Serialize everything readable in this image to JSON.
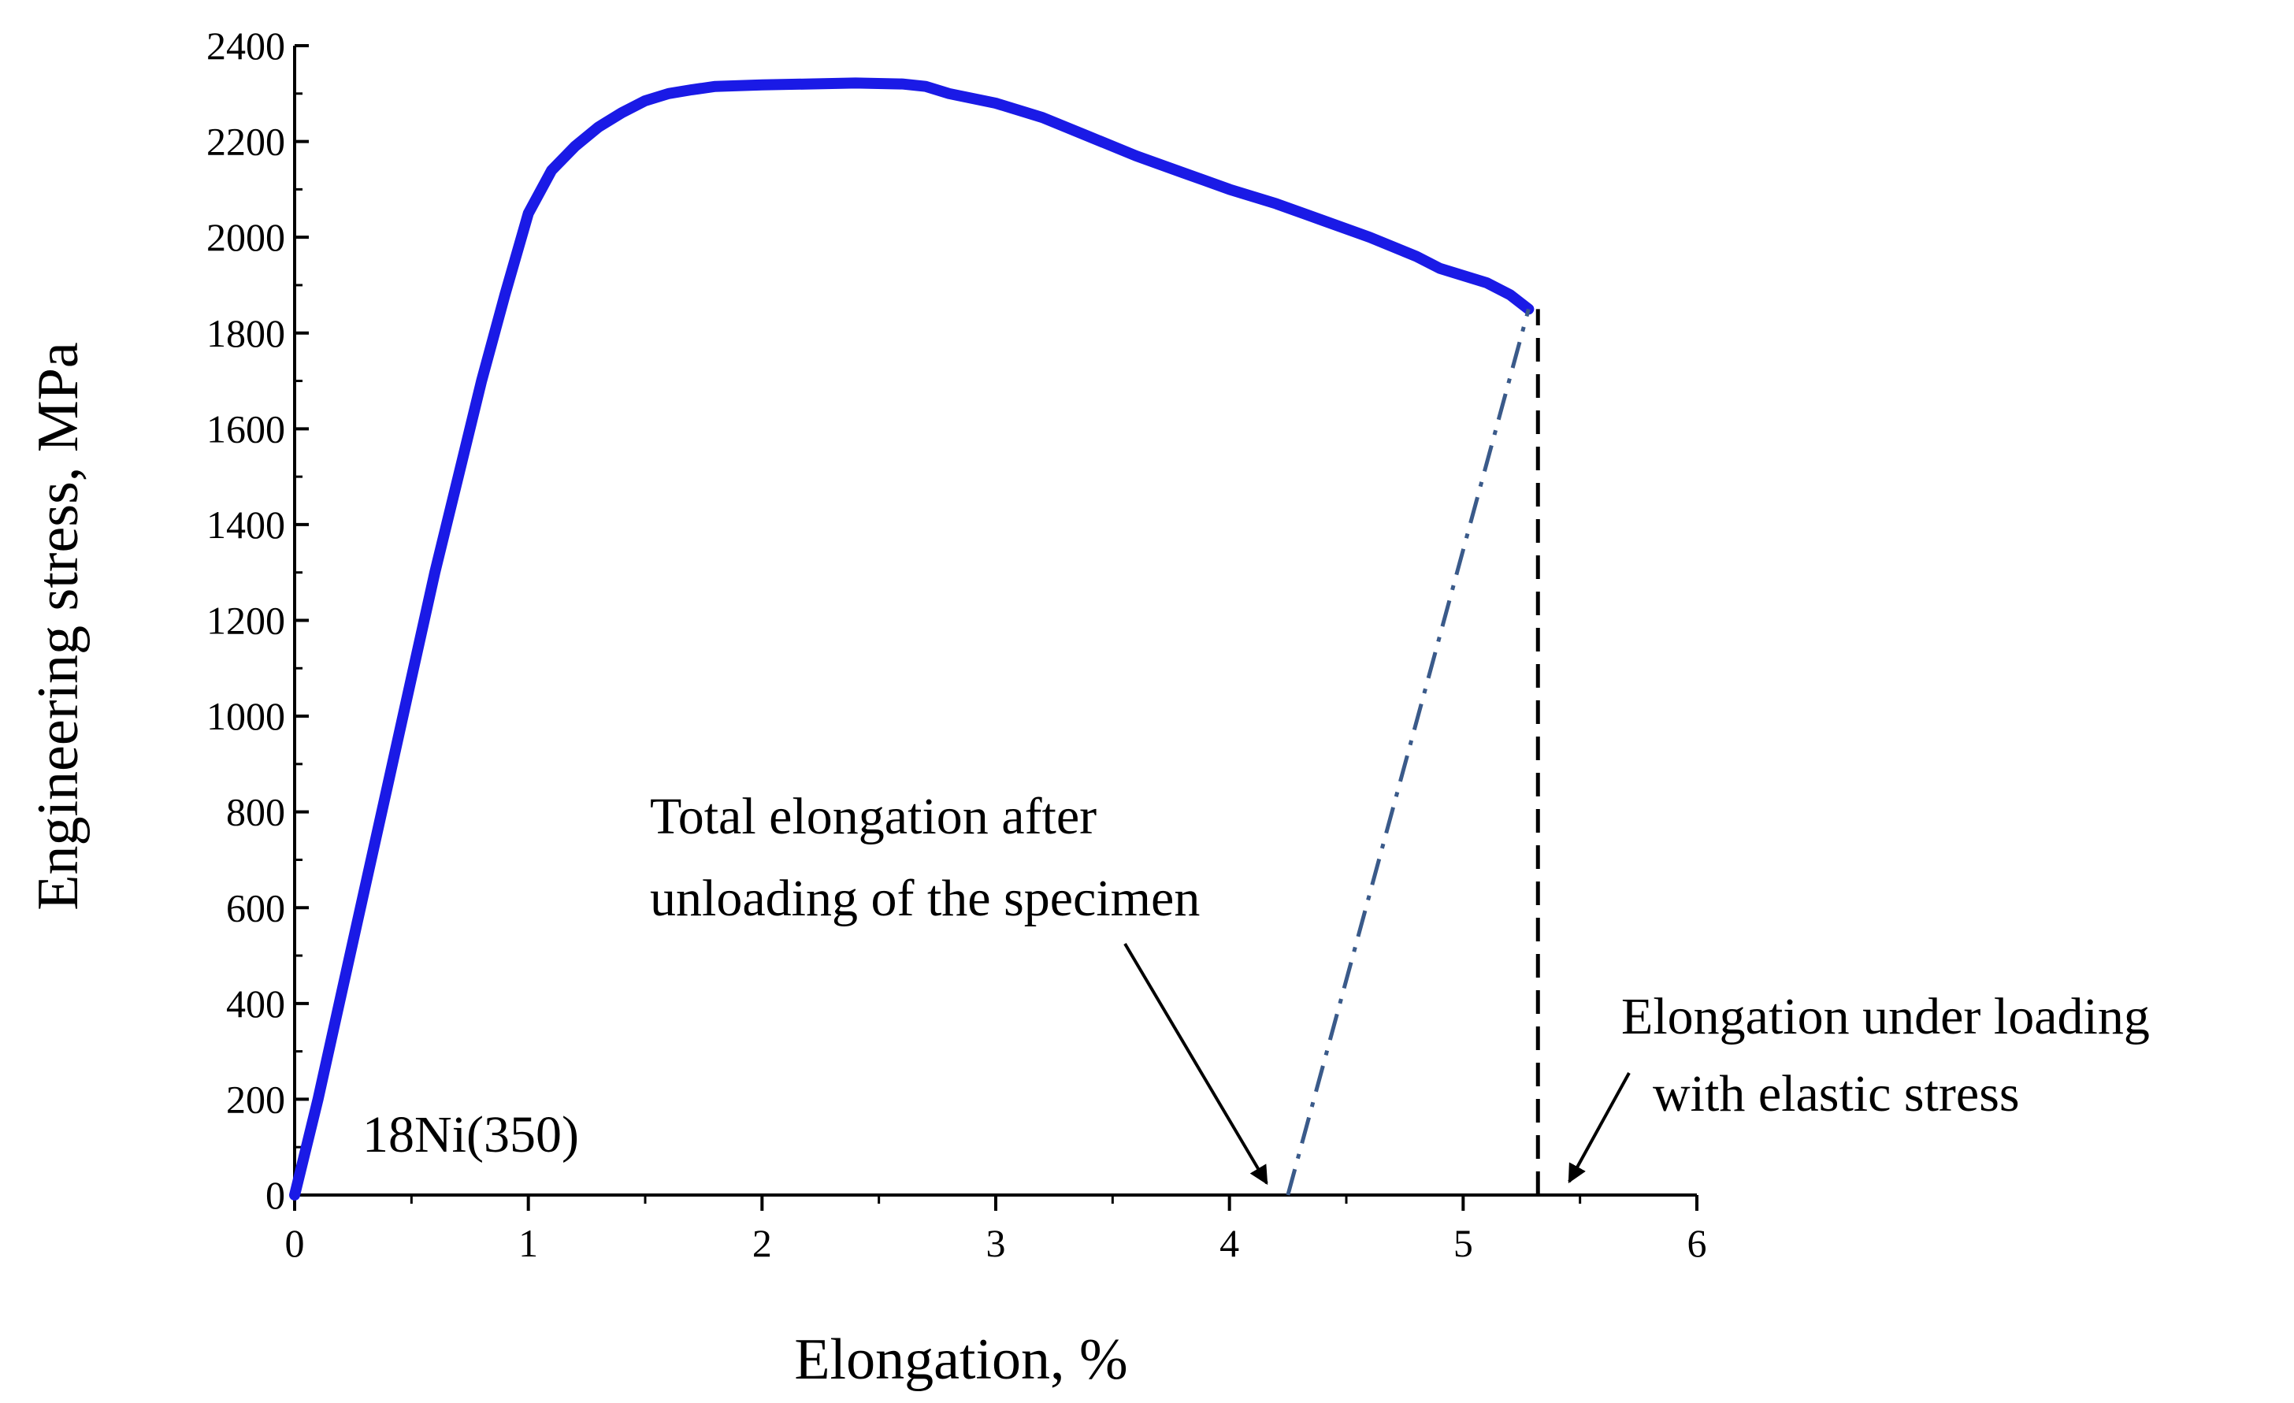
{
  "chart_data": {
    "type": "line",
    "xlabel": "Elongation, %",
    "ylabel": "Engineering stress, MPa",
    "xlim": [
      0,
      6
    ],
    "ylim": [
      0,
      2400
    ],
    "xticks": [
      "0",
      "1",
      "2",
      "3",
      "4",
      "5",
      "6"
    ],
    "yticks": [
      "0",
      "200",
      "400",
      "600",
      "800",
      "1000",
      "1200",
      "1400",
      "1600",
      "1800",
      "2000",
      "2200",
      "2400"
    ],
    "grid": false,
    "series": [
      {
        "name": "18Ni(350)",
        "color": "#1a1ae6",
        "x": [
          0.0,
          0.1,
          0.2,
          0.3,
          0.4,
          0.5,
          0.6,
          0.7,
          0.8,
          0.9,
          1.0,
          1.1,
          1.2,
          1.3,
          1.4,
          1.5,
          1.6,
          1.7,
          1.8,
          2.0,
          2.2,
          2.4,
          2.6,
          2.7,
          2.8,
          3.0,
          3.2,
          3.4,
          3.6,
          3.8,
          4.0,
          4.2,
          4.4,
          4.6,
          4.8,
          4.9,
          5.0,
          5.1,
          5.2,
          5.28
        ],
        "y": [
          0,
          200,
          420,
          640,
          860,
          1080,
          1300,
          1500,
          1700,
          1880,
          2050,
          2140,
          2190,
          2230,
          2260,
          2285,
          2300,
          2308,
          2315,
          2318,
          2320,
          2322,
          2320,
          2315,
          2300,
          2280,
          2250,
          2210,
          2170,
          2135,
          2100,
          2070,
          2035,
          2000,
          1960,
          1935,
          1920,
          1905,
          1880,
          1850
        ]
      }
    ],
    "unloading_line": {
      "x": [
        4.25,
        5.28
      ],
      "y": [
        0,
        1850
      ],
      "color": "#3a5a8a",
      "style": "dash-dot"
    },
    "loading_marker": {
      "x": [
        5.32,
        5.32
      ],
      "y": [
        0,
        1850
      ],
      "color": "#000000",
      "style": "dashed"
    },
    "annotations": {
      "total_elongation": {
        "lines": [
          "Total elongation after",
          "unloading of the specimen"
        ],
        "arrow_to_x": 4.25
      },
      "elongation_under_loading": {
        "lines": [
          "Elongation under loading",
          "with elastic stress"
        ],
        "arrow_to_x": 5.38
      },
      "series_label": "18Ni(350)"
    }
  }
}
